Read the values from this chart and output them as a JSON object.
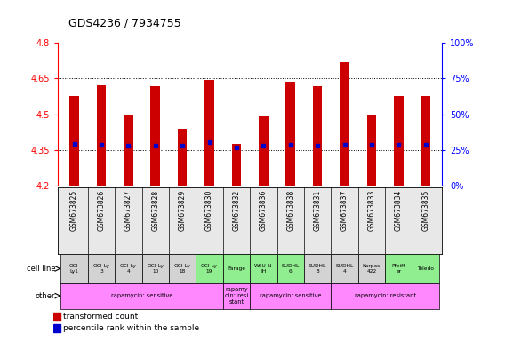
{
  "title": "GDS4236 / 7934755",
  "samples": [
    "GSM673825",
    "GSM673826",
    "GSM673827",
    "GSM673828",
    "GSM673829",
    "GSM673830",
    "GSM673832",
    "GSM673836",
    "GSM673838",
    "GSM673831",
    "GSM673837",
    "GSM673833",
    "GSM673834",
    "GSM673835"
  ],
  "bar_values": [
    4.575,
    4.62,
    4.5,
    4.618,
    4.44,
    4.645,
    4.375,
    4.49,
    4.635,
    4.618,
    4.72,
    4.5,
    4.575,
    4.575
  ],
  "percentile_values": [
    4.375,
    4.373,
    4.37,
    4.368,
    4.368,
    4.382,
    4.362,
    4.368,
    4.372,
    4.368,
    4.372,
    4.373,
    4.372,
    4.372
  ],
  "ymin": 4.2,
  "ymax": 4.8,
  "yticks_left": [
    4.2,
    4.35,
    4.5,
    4.65,
    4.8
  ],
  "yticks_right_pct": [
    0,
    25,
    50,
    75,
    100
  ],
  "cell_lines": [
    "OCI-\nLy1",
    "OCI-Ly\n3",
    "OCI-Ly\n4",
    "OCI-Ly\n10",
    "OCI-Ly\n18",
    "OCI-Ly\n19",
    "Farage",
    "WSU-N\nIH",
    "SUDHL\n6",
    "SUDHL\n8",
    "SUDHL\n4",
    "Karpas\n422",
    "Pfeiff\ner",
    "Toledo"
  ],
  "cell_line_colors": [
    "#d3d3d3",
    "#d3d3d3",
    "#d3d3d3",
    "#d3d3d3",
    "#d3d3d3",
    "#90ee90",
    "#90ee90",
    "#90ee90",
    "#90ee90",
    "#d3d3d3",
    "#d3d3d3",
    "#d3d3d3",
    "#90ee90",
    "#90ee90"
  ],
  "other_groups": [
    {
      "text": "rapamycin: sensitive",
      "start": 0,
      "end": 5
    },
    {
      "text": "rapamy\ncin: resi\nstant",
      "start": 6,
      "end": 6
    },
    {
      "text": "rapamycin: sensitive",
      "start": 7,
      "end": 9
    },
    {
      "text": "rapamycin: resistant",
      "start": 10,
      "end": 13
    }
  ],
  "other_color": "#ff88ff",
  "bar_color": "#cc0000",
  "percentile_color": "#0000cc",
  "dotted_yticks": [
    4.35,
    4.5,
    4.65
  ],
  "bar_width": 0.35
}
